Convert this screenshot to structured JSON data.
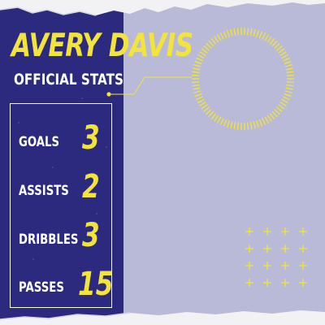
{
  "player": {
    "name": "AVERY DAVIS",
    "subtitle": "OFFICIAL STATS"
  },
  "stats": [
    {
      "label": "GOALS",
      "value": "3"
    },
    {
      "label": "ASSISTS",
      "value": "2"
    },
    {
      "label": "DRIBBLES",
      "value": "3"
    },
    {
      "label": "PASSES",
      "value": "15"
    }
  ],
  "colors": {
    "panel": "#2b2a7e",
    "background": "#b9b9d8",
    "accent": "#f2e43a",
    "text": "#ffffff"
  },
  "decor": {
    "ring": "dashed-circle-icon",
    "grid": "plus-grid-icon",
    "edges": "torn-paper-edge"
  }
}
